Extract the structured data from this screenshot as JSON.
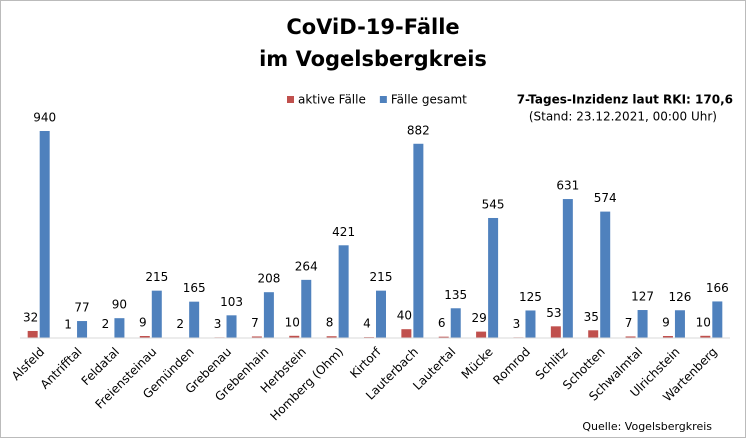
{
  "chart_data": {
    "type": "bar",
    "title": [
      "CoViD-19-Fälle",
      "im Vogelsbergkreis"
    ],
    "annotations": [
      "7-Tages-Inzidenz laut RKI: 170,6",
      "(Stand: 23.12.2021, 00:00 Uhr)"
    ],
    "source": "Quelle: Vogelsbergkreis",
    "categories": [
      "Alsfeld",
      "Antrifftal",
      "Feldatal",
      "Freiensteinau",
      "Gemünden",
      "Grebenau",
      "Grebenhain",
      "Herbstein",
      "Homberg (Ohm)",
      "Kirtorf",
      "Lauterbach",
      "Lautertal",
      "Mücke",
      "Romrod",
      "Schlitz",
      "Schotten",
      "Schwalmtal",
      "Ulrichstein",
      "Wartenberg"
    ],
    "series": [
      {
        "name": "aktive Fälle",
        "color": "#c0504d",
        "values": [
          32,
          1,
          2,
          9,
          2,
          3,
          7,
          10,
          8,
          4,
          40,
          6,
          29,
          3,
          53,
          35,
          7,
          9,
          10
        ]
      },
      {
        "name": "Fälle gesamt",
        "color": "#4f81bd",
        "values": [
          940,
          77,
          90,
          215,
          165,
          103,
          208,
          264,
          421,
          215,
          882,
          135,
          545,
          125,
          631,
          574,
          127,
          126,
          166
        ]
      }
    ]
  }
}
